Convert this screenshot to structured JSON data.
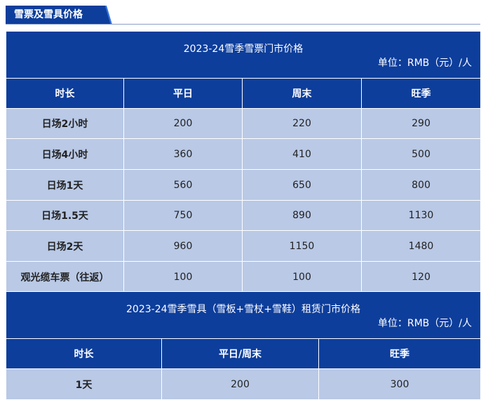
{
  "section_tag": "雪票及雪具价格",
  "ticket_table": {
    "title": "2023-24雪季雪票门市价格",
    "unit": "单位：RMB（元）/人",
    "headers": [
      "时长",
      "平日",
      "周末",
      "旺季"
    ],
    "rows": [
      [
        "日场2小时",
        "200",
        "220",
        "290"
      ],
      [
        "日场4小时",
        "360",
        "410",
        "500"
      ],
      [
        "日场1天",
        "560",
        "650",
        "800"
      ],
      [
        "日场1.5天",
        "750",
        "890",
        "1130"
      ],
      [
        "日场2天",
        "960",
        "1150",
        "1480"
      ],
      [
        "观光缆车票（往返）",
        "100",
        "100",
        "120"
      ]
    ]
  },
  "rental_table": {
    "title": "2023-24雪季雪具（雪板+雪杖+雪鞋）租赁门市价格",
    "unit": "单位：RMB（元）/人",
    "headers": [
      "时长",
      "平日/周末",
      "旺季"
    ],
    "rows": [
      [
        "1天",
        "200",
        "300"
      ]
    ]
  }
}
